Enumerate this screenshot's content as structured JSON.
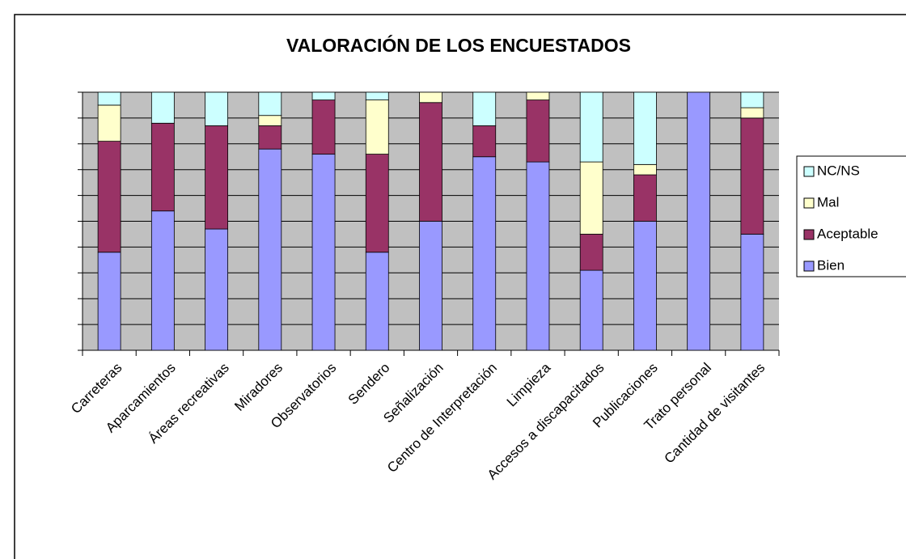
{
  "chart_data": {
    "type": "stacked_bar",
    "title": "VALORACIÓN DE LOS ENCUESTADOS",
    "categories": [
      "Carreteras",
      "Aparcamientos",
      "Áreas recreativas",
      "Miradores",
      "Observatorios",
      "Sendero",
      "Señalización",
      "Centro de Interpretación",
      "Limpieza",
      "Accesos a discapacitados",
      "Publicaciones",
      "Trato personal",
      "Cantidad de visitantes"
    ],
    "series": [
      {
        "name": "Bien",
        "color": "#9999ff",
        "values": [
          38,
          54,
          47,
          78,
          76,
          38,
          50,
          75,
          73,
          31,
          50,
          100,
          45
        ]
      },
      {
        "name": "Aceptable",
        "color": "#993366",
        "values": [
          43,
          34,
          40,
          9,
          21,
          38,
          46,
          12,
          24,
          14,
          18,
          0,
          45
        ]
      },
      {
        "name": "Mal",
        "color": "#ffffcc",
        "values": [
          14,
          0,
          0,
          4,
          0,
          21,
          4,
          0,
          3,
          28,
          4,
          0,
          4
        ]
      },
      {
        "name": "NC/NS",
        "color": "#ccffff",
        "values": [
          5,
          12,
          13,
          9,
          3,
          3,
          0,
          13,
          0,
          27,
          28,
          0,
          6
        ]
      }
    ],
    "ylim": [
      0,
      100
    ],
    "yticks": [
      0,
      10,
      20,
      30,
      40,
      50,
      60,
      70,
      80,
      90,
      100
    ],
    "grid": true,
    "legend": "right"
  }
}
